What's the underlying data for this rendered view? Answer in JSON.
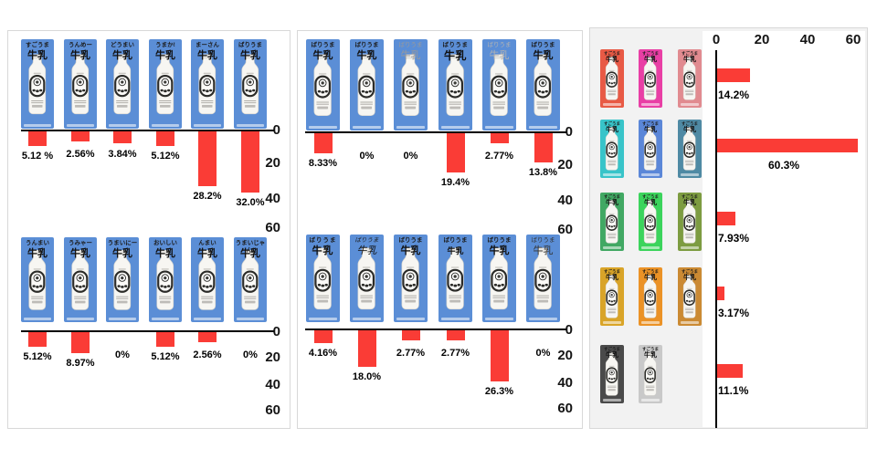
{
  "colors": {
    "bar_red": "#fa3c36",
    "carton_blue": "#5b8ed6",
    "panel_border": "#d8d8d8",
    "panel3_bg": "#f2f2f2",
    "axis_black": "#000000"
  },
  "product_word": "牛乳",
  "chart_data": [
    {
      "id": "left-top",
      "type": "bar",
      "orientation": "down",
      "axis_ticks": [
        0,
        20,
        40,
        60
      ],
      "items": [
        {
          "name": "すごうま",
          "value": 5.12,
          "label": "5.12 %"
        },
        {
          "name": "うんめー",
          "value": 2.56,
          "label": "2.56%"
        },
        {
          "name": "どうまい",
          "value": 3.84,
          "label": "3.84%"
        },
        {
          "name": "うまか!",
          "value": 5.12,
          "label": "5.12%"
        },
        {
          "name": "まーさん",
          "value": 28.2,
          "label": "28.2%"
        },
        {
          "name": "ばりうま",
          "value": 32.0,
          "label": "32.0%"
        }
      ]
    },
    {
      "id": "left-bottom",
      "type": "bar",
      "orientation": "down",
      "axis_ticks": [
        0,
        20,
        40,
        60
      ],
      "items": [
        {
          "name": "うんまい",
          "value": 5.12,
          "label": "5.12%"
        },
        {
          "name": "うみゃー",
          "value": 8.97,
          "label": "8.97%"
        },
        {
          "name": "うまいにー",
          "value": 0,
          "label": "0%"
        },
        {
          "name": "おいしい",
          "value": 5.12,
          "label": "5.12%"
        },
        {
          "name": "んまい",
          "value": 2.56,
          "label": "2.56%"
        },
        {
          "name": "うまいじゃん!",
          "value": 0,
          "label": "0%"
        }
      ]
    },
    {
      "id": "middle-top",
      "type": "bar",
      "orientation": "down",
      "axis_ticks": [
        0,
        20,
        40,
        60
      ],
      "items": [
        {
          "name": "ばりうま",
          "variant": "mincho",
          "value": 8.33,
          "label": "8.33%"
        },
        {
          "name": "ばりうま",
          "variant": "bold",
          "value": 0,
          "label": "0%"
        },
        {
          "name": "ばりうま",
          "variant": "light",
          "value": 0,
          "label": "0%"
        },
        {
          "name": "ばりうま",
          "variant": "heavy",
          "value": 19.4,
          "label": "19.4%"
        },
        {
          "name": "ばりうま",
          "variant": "pale",
          "value": 2.77,
          "label": "2.77%"
        },
        {
          "name": "ばりうま",
          "variant": "round",
          "value": 13.8,
          "label": "13.8%"
        }
      ]
    },
    {
      "id": "middle-bottom",
      "type": "bar",
      "orientation": "down",
      "axis_ticks": [
        0,
        20,
        40,
        60
      ],
      "items": [
        {
          "name": "ばりうま",
          "variant": "brush",
          "value": 4.16,
          "label": "4.16%"
        },
        {
          "name": "ばりうま",
          "variant": "hand",
          "value": 18.0,
          "label": "18.0%"
        },
        {
          "name": "ばりうま",
          "variant": "marker",
          "value": 2.77,
          "label": "2.77%"
        },
        {
          "name": "ばりうま",
          "variant": "small",
          "value": 2.77,
          "label": "2.77%"
        },
        {
          "name": "ばりうま",
          "variant": "roundb",
          "value": 26.3,
          "label": "26.3%"
        },
        {
          "name": "ばりうま",
          "variant": "thin",
          "value": 0,
          "label": "0%"
        }
      ]
    },
    {
      "id": "right",
      "type": "bar",
      "orientation": "right",
      "axis_ticks": [
        0,
        20,
        40,
        60
      ],
      "brand": "すごうま",
      "rows": [
        {
          "colors": [
            "#e85a45",
            "#e93fa5",
            "#e18b90"
          ],
          "value": 14.2,
          "label": "14.2%"
        },
        {
          "colors": [
            "#38c4c9",
            "#5b87d8",
            "#4f8aa4"
          ],
          "value": 60.3,
          "label": "60.3%"
        },
        {
          "colors": [
            "#41a863",
            "#3bd45c",
            "#7d9c41"
          ],
          "value": 7.93,
          "label": "7.93%"
        },
        {
          "colors": [
            "#d9a428",
            "#eb9226",
            "#cb8a33"
          ],
          "value": 3.17,
          "label": "3.17%"
        },
        {
          "colors": [
            "#4a4a4a",
            "#c9c9c9"
          ],
          "value": 11.1,
          "label": "11.1%"
        }
      ]
    }
  ]
}
